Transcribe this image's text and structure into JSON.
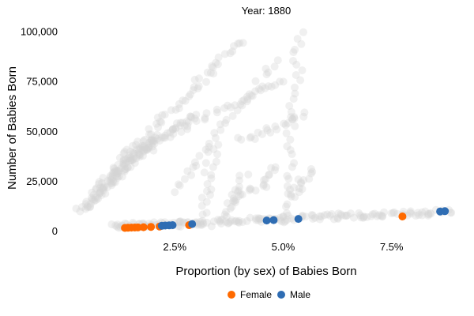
{
  "chart_data": {
    "type": "scatter",
    "title": "Year: 1880",
    "xlabel": "Proportion (by sex) of Babies Born",
    "ylabel": "Number of Babies Born",
    "xlim": [
      0.002,
      0.09
    ],
    "ylim": [
      -2000,
      103000
    ],
    "xticks": [
      0.025,
      0.05,
      0.075
    ],
    "xtick_labels": [
      "2.5%",
      "5.0%",
      "7.5%"
    ],
    "yticks": [
      0,
      25000,
      50000,
      75000,
      100000
    ],
    "ytick_labels": [
      "0",
      "25,000",
      "50,000",
      "75,000",
      "100,000"
    ],
    "grid": false,
    "legend": "bottom-center",
    "colors": {
      "Female": "#ff6a00",
      "Male": "#2f6db3",
      "background_points": "#d3d3d3"
    },
    "series": [
      {
        "name": "Female",
        "points": [
          {
            "x": 0.0135,
            "y": 1350
          },
          {
            "x": 0.0142,
            "y": 1450
          },
          {
            "x": 0.015,
            "y": 1520
          },
          {
            "x": 0.0158,
            "y": 1580
          },
          {
            "x": 0.0165,
            "y": 1620
          },
          {
            "x": 0.0178,
            "y": 1720
          },
          {
            "x": 0.0195,
            "y": 1880
          },
          {
            "x": 0.0215,
            "y": 2100
          },
          {
            "x": 0.0283,
            "y": 2750
          },
          {
            "x": 0.0775,
            "y": 7100
          }
        ]
      },
      {
        "name": "Male",
        "points": [
          {
            "x": 0.022,
            "y": 2450
          },
          {
            "x": 0.0228,
            "y": 2550
          },
          {
            "x": 0.0237,
            "y": 2650
          },
          {
            "x": 0.0245,
            "y": 2750
          },
          {
            "x": 0.029,
            "y": 3300
          },
          {
            "x": 0.0462,
            "y": 5100
          },
          {
            "x": 0.0478,
            "y": 5300
          },
          {
            "x": 0.0535,
            "y": 5900
          },
          {
            "x": 0.0862,
            "y": 9600
          },
          {
            "x": 0.0873,
            "y": 9750
          }
        ]
      }
    ],
    "background_series": [
      {
        "x0": 0.0035,
        "y0": 10000,
        "x1": 0.02,
        "y1": 46000,
        "n": 90
      },
      {
        "x0": 0.006,
        "y0": 20000,
        "x1": 0.029,
        "y1": 58000,
        "n": 60
      },
      {
        "x0": 0.01,
        "y0": 30000,
        "x1": 0.04,
        "y1": 95000,
        "n": 55
      },
      {
        "x0": 0.015,
        "y0": 40000,
        "x1": 0.05,
        "y1": 75000,
        "n": 40
      },
      {
        "x0": 0.025,
        "y0": 20000,
        "x1": 0.048,
        "y1": 85000,
        "n": 35
      },
      {
        "x0": 0.05,
        "y0": 3000,
        "x1": 0.054,
        "y1": 100000,
        "n": 35
      },
      {
        "x0": 0.04,
        "y0": 45000,
        "x1": 0.055,
        "y1": 58000,
        "n": 20
      },
      {
        "x0": 0.052,
        "y0": 17000,
        "x1": 0.056,
        "y1": 30000,
        "n": 15
      },
      {
        "x0": 0.046,
        "y0": 22000,
        "x1": 0.048,
        "y1": 32000,
        "n": 10
      },
      {
        "x0": 0.031,
        "y0": 3000,
        "x1": 0.034,
        "y1": 42000,
        "n": 20
      },
      {
        "x0": 0.037,
        "y0": 5000,
        "x1": 0.041,
        "y1": 28000,
        "n": 15
      },
      {
        "x0": 0.038,
        "y0": 14000,
        "x1": 0.043,
        "y1": 22000,
        "n": 12
      },
      {
        "x0": 0.012,
        "y0": 2500,
        "x1": 0.088,
        "y1": 9500,
        "n": 90
      },
      {
        "x0": 0.01,
        "y0": 2500,
        "x1": 0.035,
        "y1": 3500,
        "n": 35
      },
      {
        "x0": 0.055,
        "y0": 7000,
        "x1": 0.088,
        "y1": 9000,
        "n": 30
      },
      {
        "x0": 0.038,
        "y0": 4500,
        "x1": 0.052,
        "y1": 6500,
        "n": 15
      }
    ]
  }
}
